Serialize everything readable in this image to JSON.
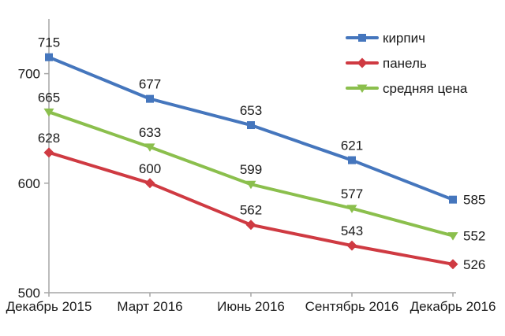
{
  "chart_data": {
    "type": "line",
    "title": "",
    "xlabel": "",
    "ylabel": "",
    "categories": [
      "Декабрь 2015",
      "Март 2016",
      "Июнь 2016",
      "Сентябрь 2016",
      "Декабрь 2016"
    ],
    "series": [
      {
        "name": "кирпич",
        "color": "#4576BD",
        "marker": "square",
        "values": [
          715,
          677,
          653,
          621,
          585
        ]
      },
      {
        "name": "панель",
        "color": "#CF3A42",
        "marker": "diamond",
        "values": [
          628,
          600,
          562,
          543,
          526
        ]
      },
      {
        "name": "средняя цена",
        "color": "#8BBF4D",
        "marker": "triangle-down",
        "values": [
          665,
          633,
          599,
          577,
          552
        ]
      }
    ],
    "ylim": [
      500,
      750
    ],
    "yticks": [
      500,
      600,
      700
    ],
    "grid": false,
    "data_labels": true,
    "legend_position": "top-right",
    "axis_color": "#A6A6A6",
    "text_color": "#1A1A1A",
    "background": "#FFFFFF"
  }
}
